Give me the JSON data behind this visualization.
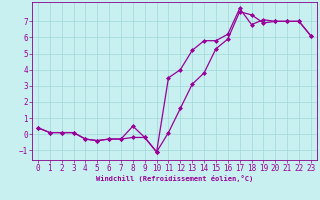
{
  "title": "",
  "xlabel": "Windchill (Refroidissement éolien,°C)",
  "bg_color": "#c8f0f0",
  "line_color": "#990099",
  "marker": "D",
  "markersize": 2.0,
  "linewidth": 0.9,
  "xlim": [
    -0.5,
    23.5
  ],
  "ylim": [
    -1.6,
    8.2
  ],
  "xticks": [
    0,
    1,
    2,
    3,
    4,
    5,
    6,
    7,
    8,
    9,
    10,
    11,
    12,
    13,
    14,
    15,
    16,
    17,
    18,
    19,
    20,
    21,
    22,
    23
  ],
  "yticks": [
    -1,
    0,
    1,
    2,
    3,
    4,
    5,
    6,
    7
  ],
  "line1_x": [
    0,
    1,
    2,
    3,
    4,
    5,
    6,
    7,
    8,
    9,
    10,
    11,
    12,
    13,
    14,
    15,
    16,
    17,
    18,
    19,
    20,
    21,
    22,
    23
  ],
  "line1_y": [
    0.4,
    0.1,
    0.1,
    0.1,
    -0.3,
    -0.4,
    -0.3,
    -0.3,
    -0.2,
    -0.2,
    -1.1,
    0.1,
    1.6,
    3.1,
    3.8,
    5.3,
    5.9,
    7.6,
    7.4,
    6.9,
    7.0,
    7.0,
    7.0,
    6.1
  ],
  "line2_x": [
    0,
    1,
    2,
    3,
    4,
    5,
    6,
    7,
    8,
    9,
    10,
    11,
    12,
    13,
    14,
    15,
    16,
    17,
    18,
    19,
    20,
    21,
    22,
    23
  ],
  "line2_y": [
    0.4,
    0.1,
    0.1,
    0.1,
    -0.3,
    -0.4,
    -0.3,
    -0.3,
    0.5,
    -0.2,
    -1.1,
    3.5,
    4.0,
    5.2,
    5.8,
    5.8,
    6.2,
    7.8,
    6.8,
    7.1,
    7.0,
    7.0,
    7.0,
    6.1
  ],
  "tick_fontsize": 5.5,
  "xlabel_fontsize": 5.0,
  "grid_color": "#a0d8d8",
  "spine_color": "#880088"
}
